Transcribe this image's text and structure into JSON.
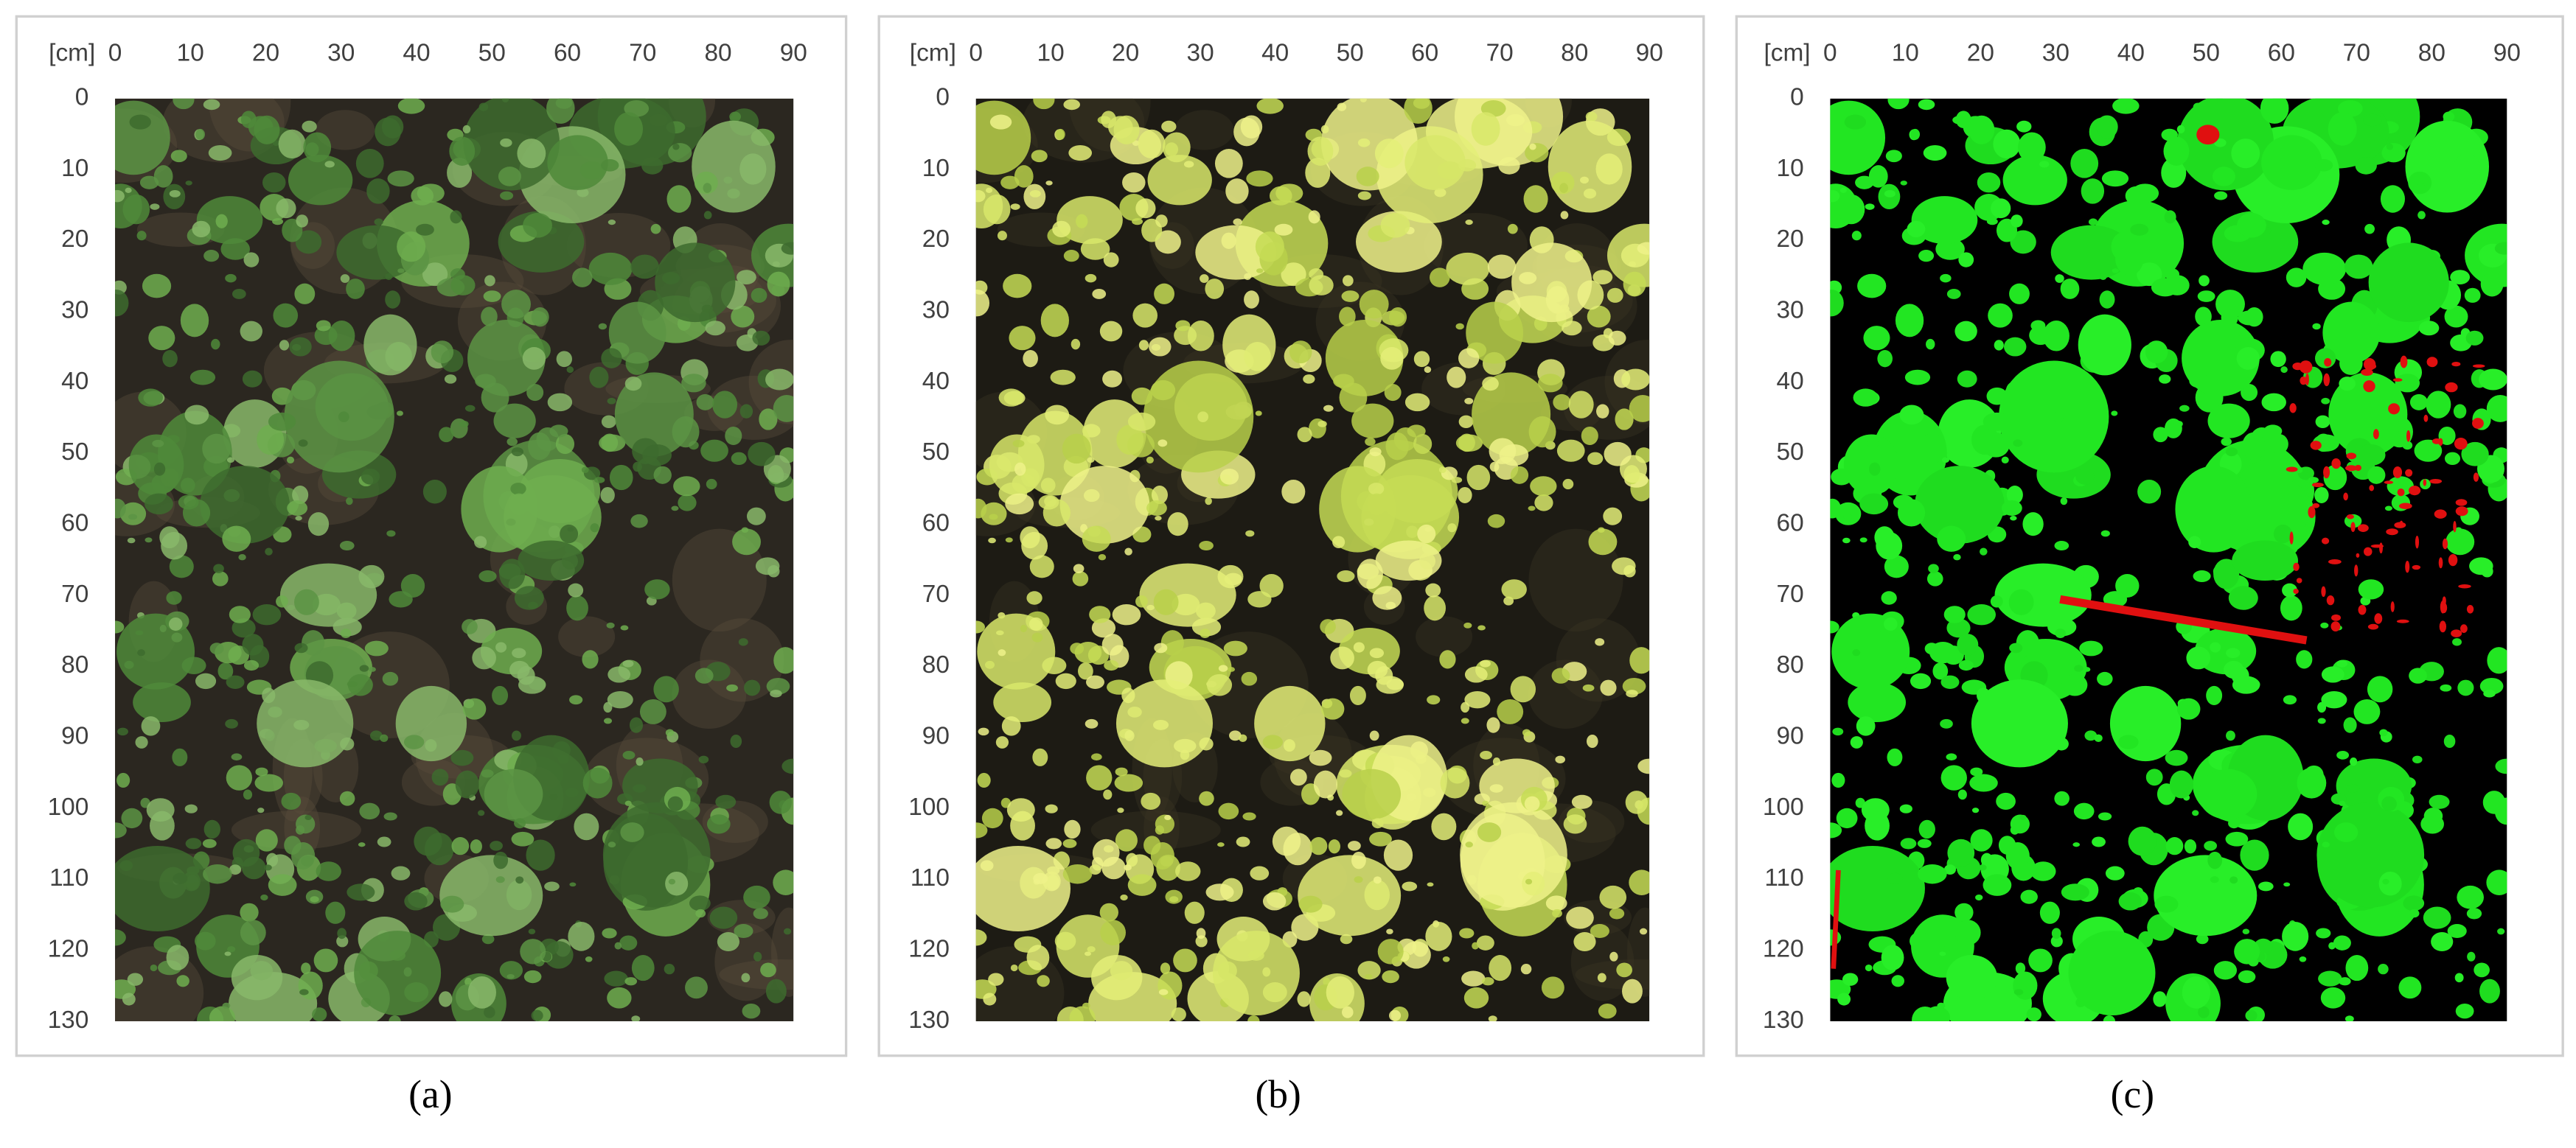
{
  "panels": [
    {
      "unit_label": "[cm]",
      "xlim": [
        0,
        90
      ],
      "ylim": [
        0,
        130
      ],
      "xticks": [
        0,
        10,
        20,
        30,
        40,
        50,
        60,
        70,
        80,
        90
      ],
      "yticks": [
        0,
        10,
        20,
        30,
        40,
        50,
        60,
        70,
        80,
        90,
        100,
        110,
        120,
        130
      ],
      "caption": "(a)"
    },
    {
      "unit_label": "[cm]",
      "xlim": [
        0,
        90
      ],
      "ylim": [
        0,
        130
      ],
      "xticks": [
        0,
        10,
        20,
        30,
        40,
        50,
        60,
        70,
        80,
        90
      ],
      "yticks": [
        0,
        10,
        20,
        30,
        40,
        50,
        60,
        70,
        80,
        90,
        100,
        110,
        120,
        130
      ],
      "caption": "(b)"
    },
    {
      "unit_label": "[cm]",
      "xlim": [
        0,
        90
      ],
      "ylim": [
        0,
        130
      ],
      "xticks": [
        0,
        10,
        20,
        30,
        40,
        50,
        60,
        70,
        80,
        90
      ],
      "yticks": [
        0,
        10,
        20,
        30,
        40,
        50,
        60,
        70,
        80,
        90,
        100,
        110,
        120,
        130
      ],
      "caption": "(c)"
    }
  ]
}
